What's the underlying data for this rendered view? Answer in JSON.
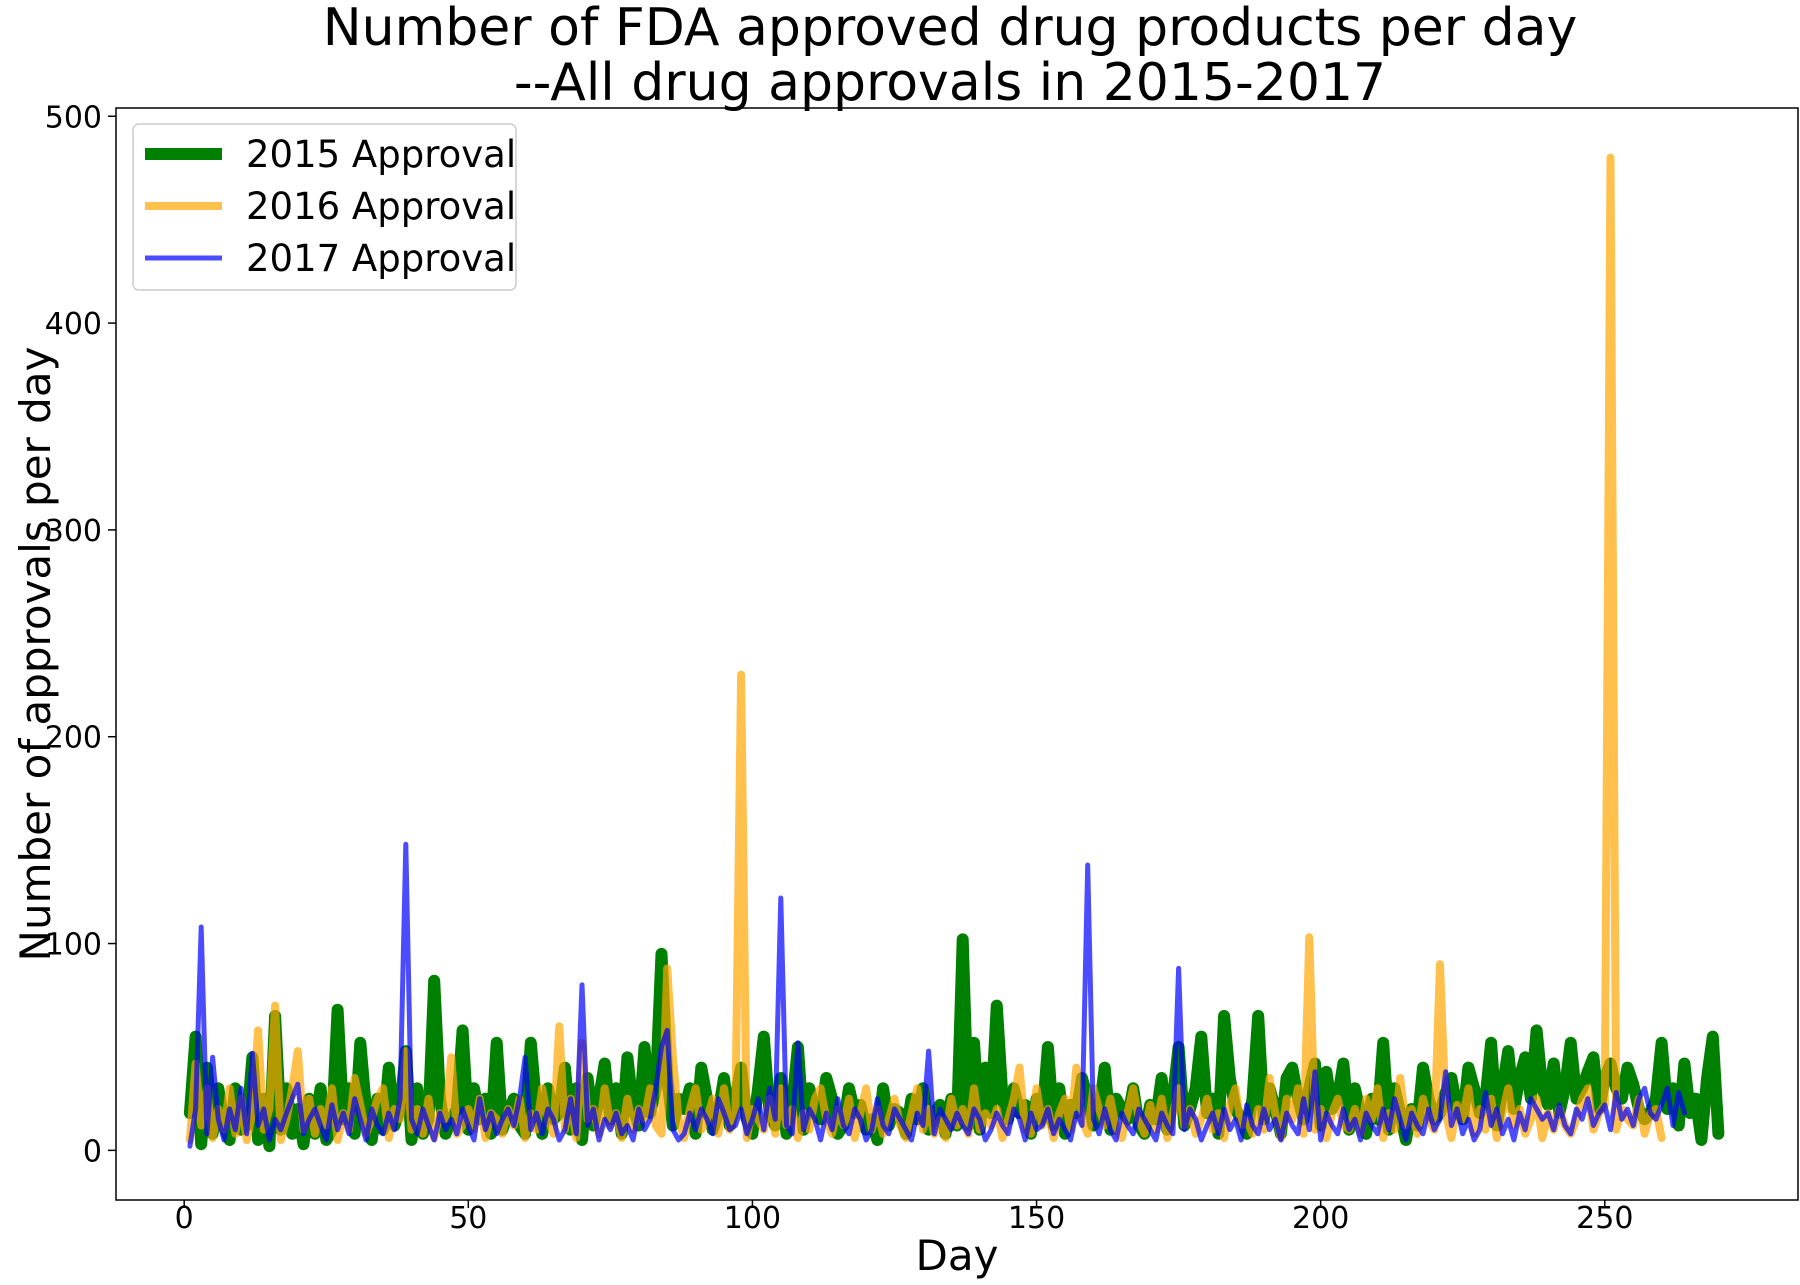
{
  "chart_data": {
    "type": "line",
    "title": "Number of FDA approved drug products per day",
    "subtitle": "--All drug approvals in 2015-2017",
    "xlabel": "Day",
    "ylabel": "Number of approvals per day",
    "xlim": [
      -12,
      284
    ],
    "ylim": [
      -24,
      504
    ],
    "xticks": [
      0,
      50,
      100,
      150,
      200,
      250
    ],
    "yticks": [
      0,
      100,
      200,
      300,
      400,
      500
    ],
    "grid": false,
    "legend_position": "top-left",
    "series": [
      {
        "name": "2015 Approval",
        "color": "#008000",
        "opacity": 1,
        "line_width": 12,
        "values": [
          18,
          55,
          3,
          40,
          8,
          30,
          12,
          5,
          30,
          10,
          12,
          45,
          5,
          25,
          2,
          65,
          10,
          30,
          8,
          20,
          3,
          25,
          8,
          30,
          5,
          10,
          68,
          15,
          30,
          8,
          52,
          20,
          5,
          25,
          10,
          40,
          12,
          20,
          48,
          5,
          30,
          8,
          15,
          82,
          25,
          8,
          15,
          20,
          58,
          10,
          30,
          15,
          25,
          8,
          52,
          10,
          18,
          25,
          12,
          8,
          52,
          20,
          8,
          30,
          15,
          18,
          40,
          10,
          30,
          5,
          35,
          12,
          25,
          42,
          15,
          30,
          8,
          45,
          20,
          12,
          50,
          18,
          30,
          95,
          35,
          12,
          25,
          20,
          30,
          8,
          40,
          25,
          10,
          18,
          35,
          12,
          25,
          40,
          15,
          8,
          30,
          55,
          18,
          12,
          35,
          8,
          22,
          50,
          10,
          30,
          18,
          15,
          35,
          25,
          8,
          12,
          30,
          18,
          22,
          10,
          15,
          5,
          30,
          12,
          20,
          18,
          8,
          25,
          15,
          30,
          10,
          18,
          22,
          8,
          25,
          12,
          102,
          12,
          52,
          10,
          40,
          18,
          70,
          25,
          15,
          30,
          18,
          22,
          8,
          25,
          15,
          50,
          12,
          30,
          8,
          22,
          18,
          35,
          25,
          12,
          18,
          40,
          10,
          25,
          20,
          15,
          30,
          12,
          8,
          22,
          15,
          35,
          10,
          25,
          50,
          12,
          20,
          30,
          55,
          18,
          25,
          8,
          65,
          35,
          20,
          15,
          8,
          25,
          65,
          15,
          30,
          20,
          8,
          35,
          40,
          25,
          15,
          30,
          42,
          12,
          38,
          20,
          25,
          42,
          10,
          30,
          18,
          8,
          25,
          15,
          52,
          10,
          30,
          18,
          5,
          20,
          12,
          40,
          25,
          15,
          18,
          28,
          35,
          20,
          15,
          40,
          30,
          18,
          25,
          52,
          12,
          30,
          48,
          20,
          35,
          45,
          25,
          58,
          30,
          22,
          42,
          18,
          30,
          52,
          25,
          30,
          38,
          45,
          20,
          35,
          42,
          30,
          25,
          40,
          32,
          20,
          15,
          18,
          25,
          52,
          20,
          30,
          12,
          42,
          18,
          25,
          5,
          35,
          55,
          8
        ]
      },
      {
        "name": "2016 Approval",
        "color": "#FFA500",
        "opacity": 0.7,
        "line_width": 8,
        "values": [
          5,
          42,
          12,
          30,
          6,
          20,
          10,
          30,
          8,
          25,
          5,
          18,
          58,
          10,
          20,
          70,
          5,
          15,
          30,
          48,
          10,
          25,
          8,
          20,
          12,
          30,
          5,
          18,
          10,
          35,
          22,
          8,
          15,
          25,
          30,
          6,
          20,
          15,
          48,
          10,
          20,
          8,
          25,
          6,
          18,
          15,
          45,
          8,
          12,
          20,
          10,
          25,
          6,
          18,
          15,
          8,
          20,
          12,
          25,
          6,
          18,
          10,
          30,
          15,
          8,
          60,
          10,
          25,
          6,
          52,
          15,
          20,
          8,
          30,
          12,
          18,
          6,
          25,
          10,
          20,
          15,
          30,
          12,
          8,
          88,
          45,
          15,
          6,
          20,
          30,
          10,
          15,
          25,
          8,
          30,
          10,
          18,
          230,
          6,
          20,
          15,
          10,
          25,
          8,
          30,
          12,
          20,
          6,
          18,
          10,
          25,
          30,
          15,
          8,
          20,
          12,
          25,
          6,
          18,
          30,
          10,
          20,
          8,
          15,
          25,
          12,
          6,
          18,
          30,
          10,
          20,
          8,
          15,
          6,
          25,
          12,
          20,
          8,
          30,
          10,
          18,
          12,
          20,
          6,
          15,
          25,
          40,
          10,
          8,
          30,
          12,
          20,
          6,
          18,
          25,
          10,
          40,
          15,
          8,
          30,
          20,
          12,
          25,
          10,
          6,
          18,
          30,
          15,
          8,
          22,
          10,
          25,
          6,
          18,
          30,
          12,
          20,
          8,
          15,
          25,
          10,
          18,
          6,
          22,
          30,
          12,
          15,
          8,
          20,
          10,
          35,
          18,
          6,
          25,
          15,
          30,
          8,
          103,
          10,
          20,
          6,
          18,
          25,
          12,
          10,
          20,
          8,
          25,
          15,
          30,
          6,
          18,
          10,
          35,
          12,
          20,
          8,
          25,
          15,
          10,
          90,
          18,
          6,
          22,
          15,
          30,
          8,
          20,
          10,
          25,
          6,
          18,
          30,
          12,
          20,
          8,
          15,
          25,
          6,
          18,
          10,
          20,
          12,
          8,
          15,
          25,
          30,
          10,
          18,
          22,
          480,
          10,
          20,
          15,
          12,
          25,
          8,
          18,
          20,
          6
        ]
      },
      {
        "name": "2017 Approval",
        "color": "#0000FF",
        "opacity": 0.7,
        "line_width": 5,
        "values": [
          2,
          20,
          108,
          8,
          45,
          15,
          5,
          20,
          10,
          30,
          8,
          47,
          12,
          20,
          5,
          15,
          10,
          18,
          25,
          32,
          8,
          15,
          20,
          12,
          5,
          22,
          10,
          18,
          8,
          25,
          15,
          5,
          20,
          12,
          8,
          18,
          10,
          25,
          148,
          15,
          8,
          20,
          12,
          5,
          18,
          10,
          15,
          8,
          20,
          12,
          5,
          25,
          10,
          18,
          8,
          15,
          20,
          12,
          25,
          45,
          10,
          18,
          8,
          20,
          15,
          5,
          10,
          25,
          8,
          80,
          12,
          20,
          5,
          15,
          10,
          18,
          8,
          12,
          5,
          20,
          10,
          15,
          30,
          50,
          58,
          10,
          5,
          8,
          18,
          10,
          20,
          15,
          8,
          25,
          18,
          10,
          12,
          20,
          8,
          15,
          25,
          10,
          30,
          15,
          122,
          12,
          8,
          52,
          10,
          20,
          15,
          5,
          18,
          10,
          25,
          12,
          8,
          20,
          15,
          5,
          10,
          25,
          12,
          8,
          20,
          15,
          10,
          5,
          18,
          12,
          48,
          8,
          20,
          15,
          10,
          18,
          12,
          8,
          20,
          15,
          5,
          10,
          18,
          12,
          8,
          20,
          15,
          5,
          18,
          10,
          12,
          20,
          8,
          15,
          10,
          5,
          18,
          12,
          138,
          15,
          8,
          20,
          10,
          5,
          18,
          12,
          8,
          20,
          15,
          10,
          5,
          18,
          12,
          8,
          88,
          10,
          20,
          15,
          5,
          12,
          18,
          8,
          20,
          10,
          15,
          5,
          22,
          12,
          8,
          20,
          10,
          15,
          5,
          18,
          12,
          8,
          25,
          10,
          38,
          5,
          18,
          12,
          8,
          20,
          10,
          15,
          5,
          18,
          12,
          8,
          20,
          10,
          25,
          15,
          5,
          18,
          12,
          8,
          20,
          10,
          15,
          38,
          12,
          20,
          8,
          15,
          5,
          10,
          28,
          12,
          20,
          8,
          15,
          5,
          18,
          10,
          25,
          20,
          15,
          18,
          10,
          22,
          12,
          8,
          20,
          15,
          25,
          12,
          18,
          22,
          10,
          28,
          15,
          20,
          12,
          25,
          30,
          18,
          15,
          22,
          30,
          12,
          28,
          18
        ]
      }
    ]
  }
}
